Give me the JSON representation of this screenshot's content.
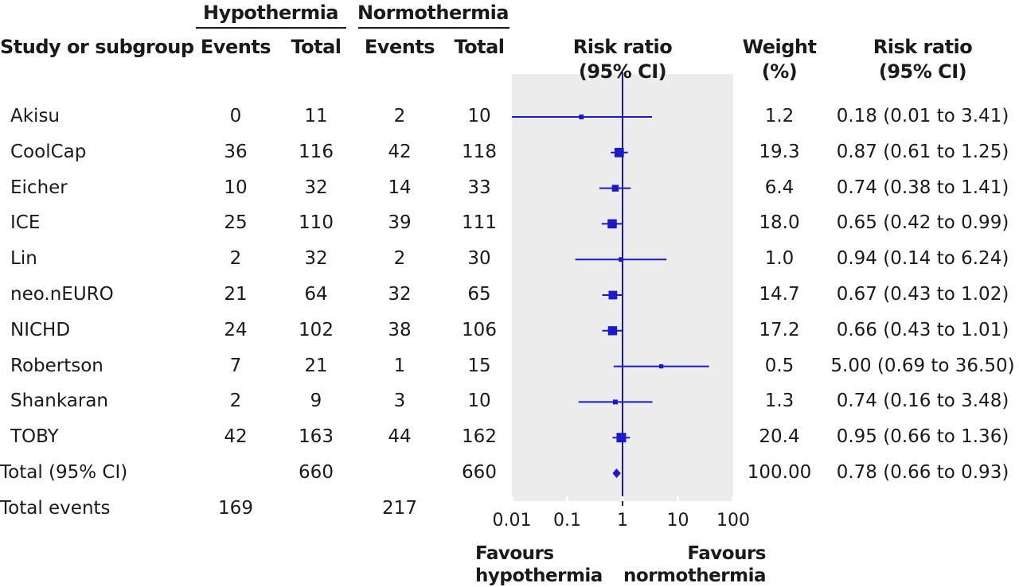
{
  "groups": {
    "hypothermia": "Hypothermia",
    "normothermia": "Normothermia"
  },
  "headers": {
    "study": "Study or subgroup",
    "events": "Events",
    "total": "Total",
    "rr_plot_line1": "Risk ratio",
    "rr_plot_line2": "(95% CI)",
    "weight_line1": "Weight",
    "weight_line2": "(%)",
    "rr_text_line1": "Risk ratio",
    "rr_text_line2": "(95% CI)"
  },
  "favours": {
    "left_line1": "Favours",
    "left_line2": "hypothermia",
    "right_line1": "Favours",
    "right_line2": "normothermia"
  },
  "colors": {
    "plot_background": "#ececec",
    "marker": "#1a1acc",
    "text": "#1a1a1a"
  },
  "chart_data": {
    "type": "forest",
    "x_scale": "log",
    "xlim": [
      0.01,
      100
    ],
    "reference_line": 1,
    "tick_labels": [
      "0.01",
      "0.1",
      "1",
      "10",
      "100"
    ],
    "tick_values": [
      0.01,
      0.1,
      1,
      10,
      100
    ],
    "studies": [
      {
        "name": "Akisu",
        "hypo_events": "0",
        "hypo_total": "11",
        "normo_events": "2",
        "normo_total": "10",
        "weight": "1.2",
        "rr_text": "0.18 (0.01 to 3.41)",
        "rr": 0.18,
        "lo": 0.01,
        "hi": 3.41
      },
      {
        "name": "CoolCap",
        "hypo_events": "36",
        "hypo_total": "116",
        "normo_events": "42",
        "normo_total": "118",
        "weight": "19.3",
        "rr_text": "0.87 (0.61 to 1.25)",
        "rr": 0.87,
        "lo": 0.61,
        "hi": 1.25
      },
      {
        "name": "Eicher",
        "hypo_events": "10",
        "hypo_total": "32",
        "normo_events": "14",
        "normo_total": "33",
        "weight": "6.4",
        "rr_text": "0.74 (0.38 to 1.41)",
        "rr": 0.74,
        "lo": 0.38,
        "hi": 1.41
      },
      {
        "name": "ICE",
        "hypo_events": "25",
        "hypo_total": "110",
        "normo_events": "39",
        "normo_total": "111",
        "weight": "18.0",
        "rr_text": "0.65 (0.42 to 0.99)",
        "rr": 0.65,
        "lo": 0.42,
        "hi": 0.99
      },
      {
        "name": "Lin",
        "hypo_events": "2",
        "hypo_total": "32",
        "normo_events": "2",
        "normo_total": "30",
        "weight": "1.0",
        "rr_text": "0.94 (0.14 to 6.24)",
        "rr": 0.94,
        "lo": 0.14,
        "hi": 6.24
      },
      {
        "name": "neo.nEURO",
        "hypo_events": "21",
        "hypo_total": "64",
        "normo_events": "32",
        "normo_total": "65",
        "weight": "14.7",
        "rr_text": "0.67 (0.43 to 1.02)",
        "rr": 0.67,
        "lo": 0.43,
        "hi": 1.02
      },
      {
        "name": "NICHD",
        "hypo_events": "24",
        "hypo_total": "102",
        "normo_events": "38",
        "normo_total": "106",
        "weight": "17.2",
        "rr_text": "0.66 (0.43 to 1.01)",
        "rr": 0.66,
        "lo": 0.43,
        "hi": 1.01
      },
      {
        "name": "Robertson",
        "hypo_events": "7",
        "hypo_total": "21",
        "normo_events": "1",
        "normo_total": "15",
        "weight": "0.5",
        "rr_text": "5.00 (0.69 to 36.50)",
        "rr": 5.0,
        "lo": 0.69,
        "hi": 36.5
      },
      {
        "name": "Shankaran",
        "hypo_events": "2",
        "hypo_total": "9",
        "normo_events": "3",
        "normo_total": "10",
        "weight": "1.3",
        "rr_text": "0.74 (0.16 to 3.48)",
        "rr": 0.74,
        "lo": 0.16,
        "hi": 3.48
      },
      {
        "name": "TOBY",
        "hypo_events": "42",
        "hypo_total": "163",
        "normo_events": "44",
        "normo_total": "162",
        "weight": "20.4",
        "rr_text": "0.95 (0.66 to 1.36)",
        "rr": 0.95,
        "lo": 0.66,
        "hi": 1.36
      }
    ],
    "total": {
      "name": "Total (95% CI)",
      "hypo_total": "660",
      "normo_total": "660",
      "weight": "100.00",
      "rr_text": "0.78 (0.66 to 0.93)",
      "rr": 0.78,
      "lo": 0.66,
      "hi": 0.93
    },
    "total_events": {
      "name": "Total events",
      "hypo_events": "169",
      "normo_events": "217"
    }
  }
}
